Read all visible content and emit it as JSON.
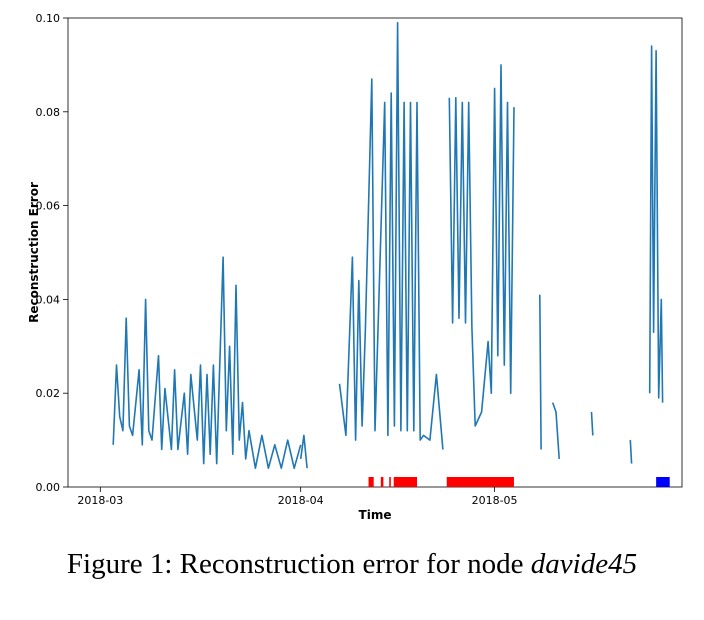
{
  "caption": {
    "prefix": "Figure 1: Reconstruction error for node ",
    "node": "davide45"
  },
  "chart_data": {
    "type": "line",
    "title": "",
    "xlabel": "Time",
    "ylabel": "Reconstruction Error",
    "ylim": [
      0.0,
      0.1
    ],
    "yticks": [
      "0.00",
      "0.02",
      "0.04",
      "0.06",
      "0.08",
      "0.10"
    ],
    "xlim": [
      "2018-02-24",
      "2018-05-30"
    ],
    "xticks": [
      {
        "date": "2018-03-01",
        "label": "2018-03"
      },
      {
        "date": "2018-04-01",
        "label": "2018-04"
      },
      {
        "date": "2018-05-01",
        "label": "2018-05"
      }
    ],
    "grid": false,
    "line_color": "#1f77b4",
    "series": [
      {
        "segments": [
          {
            "start": "2018-03-03",
            "end": "2018-04-01",
            "points": [
              [
                "2018-03-03",
                0.009
              ],
              [
                "2018-03-03.5",
                0.026
              ],
              [
                "2018-03-04",
                0.015
              ],
              [
                "2018-03-04.5",
                0.012
              ],
              [
                "2018-03-05",
                0.036
              ],
              [
                "2018-03-05.5",
                0.013
              ],
              [
                "2018-03-06",
                0.011
              ],
              [
                "2018-03-07",
                0.025
              ],
              [
                "2018-03-07.5",
                0.009
              ],
              [
                "2018-03-08",
                0.04
              ],
              [
                "2018-03-08.5",
                0.012
              ],
              [
                "2018-03-09",
                0.01
              ],
              [
                "2018-03-10",
                0.028
              ],
              [
                "2018-03-10.5",
                0.008
              ],
              [
                "2018-03-11",
                0.021
              ],
              [
                "2018-03-12",
                0.008
              ],
              [
                "2018-03-12.5",
                0.025
              ],
              [
                "2018-03-13",
                0.008
              ],
              [
                "2018-03-14",
                0.02
              ],
              [
                "2018-03-14.5",
                0.007
              ],
              [
                "2018-03-15",
                0.024
              ],
              [
                "2018-03-16",
                0.01
              ],
              [
                "2018-03-16.5",
                0.026
              ],
              [
                "2018-03-17",
                0.005
              ],
              [
                "2018-03-17.5",
                0.024
              ],
              [
                "2018-03-18",
                0.007
              ],
              [
                "2018-03-18.5",
                0.026
              ],
              [
                "2018-03-19",
                0.005
              ],
              [
                "2018-03-20",
                0.049
              ],
              [
                "2018-03-20.5",
                0.012
              ],
              [
                "2018-03-21",
                0.03
              ],
              [
                "2018-03-21.5",
                0.007
              ],
              [
                "2018-03-22",
                0.043
              ],
              [
                "2018-03-22.5",
                0.01
              ],
              [
                "2018-03-23",
                0.018
              ],
              [
                "2018-03-23.5",
                0.006
              ],
              [
                "2018-03-24",
                0.012
              ],
              [
                "2018-03-25",
                0.004
              ],
              [
                "2018-03-26",
                0.011
              ],
              [
                "2018-03-27",
                0.004
              ],
              [
                "2018-03-28",
                0.009
              ],
              [
                "2018-03-29",
                0.004
              ],
              [
                "2018-03-30",
                0.01
              ],
              [
                "2018-03-31",
                0.004
              ],
              [
                "2018-04-01",
                0.009
              ]
            ]
          },
          {
            "start": "2018-04-01",
            "end": "2018-04-02",
            "points": [
              [
                "2018-04-01",
                0.006
              ],
              [
                "2018-04-01.5",
                0.011
              ],
              [
                "2018-04-02",
                0.004
              ]
            ]
          },
          {
            "start": "2018-04-07",
            "end": "2018-04-23",
            "points": [
              [
                "2018-04-07",
                0.022
              ],
              [
                "2018-04-08",
                0.011
              ],
              [
                "2018-04-09",
                0.049
              ],
              [
                "2018-04-09.5",
                0.01
              ],
              [
                "2018-04-10",
                0.044
              ],
              [
                "2018-04-10.5",
                0.013
              ],
              [
                "2018-04-11",
                0.033
              ],
              [
                "2018-04-12",
                0.087
              ],
              [
                "2018-04-12.5",
                0.012
              ],
              [
                "2018-04-13",
                0.035
              ],
              [
                "2018-04-14",
                0.082
              ],
              [
                "2018-04-14.5",
                0.011
              ],
              [
                "2018-04-15",
                0.084
              ],
              [
                "2018-04-15.5",
                0.013
              ],
              [
                "2018-04-16",
                0.099
              ],
              [
                "2018-04-16.5",
                0.012
              ],
              [
                "2018-04-17",
                0.082
              ],
              [
                "2018-04-17.5",
                0.012
              ],
              [
                "2018-04-18",
                0.082
              ],
              [
                "2018-04-18.5",
                0.012
              ],
              [
                "2018-04-19",
                0.082
              ],
              [
                "2018-04-19.5",
                0.01
              ],
              [
                "2018-04-20",
                0.011
              ],
              [
                "2018-04-21",
                0.01
              ],
              [
                "2018-04-22",
                0.024
              ],
              [
                "2018-04-23",
                0.008
              ]
            ]
          },
          {
            "start": "2018-04-24",
            "end": "2018-05-04",
            "points": [
              [
                "2018-04-24",
                0.083
              ],
              [
                "2018-04-24.5",
                0.035
              ],
              [
                "2018-04-25",
                0.083
              ],
              [
                "2018-04-25.5",
                0.036
              ],
              [
                "2018-04-26",
                0.082
              ],
              [
                "2018-04-26.5",
                0.035
              ],
              [
                "2018-04-27",
                0.082
              ],
              [
                "2018-04-27.5",
                0.034
              ],
              [
                "2018-04-28",
                0.013
              ],
              [
                "2018-04-29",
                0.016
              ],
              [
                "2018-04-30",
                0.031
              ],
              [
                "2018-04-30.5",
                0.02
              ],
              [
                "2018-05-01",
                0.085
              ],
              [
                "2018-05-01.5",
                0.028
              ],
              [
                "2018-05-02",
                0.09
              ],
              [
                "2018-05-02.5",
                0.026
              ],
              [
                "2018-05-03",
                0.082
              ],
              [
                "2018-05-03.5",
                0.02
              ],
              [
                "2018-05-04",
                0.081
              ]
            ]
          },
          {
            "start": "2018-05-08",
            "end": "2018-05-08",
            "points": [
              [
                "2018-05-08",
                0.041
              ],
              [
                "2018-05-08.2",
                0.008
              ]
            ]
          },
          {
            "start": "2018-05-10",
            "end": "2018-05-11",
            "points": [
              [
                "2018-05-10",
                0.018
              ],
              [
                "2018-05-10.5",
                0.016
              ],
              [
                "2018-05-11",
                0.006
              ]
            ]
          },
          {
            "start": "2018-05-16",
            "end": "2018-05-16",
            "points": [
              [
                "2018-05-16",
                0.016
              ],
              [
                "2018-05-16.2",
                0.011
              ]
            ]
          },
          {
            "start": "2018-05-22",
            "end": "2018-05-22",
            "points": [
              [
                "2018-05-22",
                0.01
              ],
              [
                "2018-05-22.2",
                0.005
              ]
            ]
          },
          {
            "start": "2018-05-25",
            "end": "2018-05-27",
            "points": [
              [
                "2018-05-25",
                0.02
              ],
              [
                "2018-05-25.3",
                0.094
              ],
              [
                "2018-05-25.6",
                0.033
              ],
              [
                "2018-05-26",
                0.093
              ],
              [
                "2018-05-26.4",
                0.019
              ],
              [
                "2018-05-26.8",
                0.04
              ],
              [
                "2018-05-27",
                0.018
              ]
            ]
          }
        ]
      }
    ],
    "anomaly_bars": [
      {
        "start": "2018-04-11.5",
        "end": "2018-04-12.3",
        "color": "#ff0000"
      },
      {
        "start": "2018-04-13.4",
        "end": "2018-04-13.8",
        "color": "#ff0000"
      },
      {
        "start": "2018-04-14.7",
        "end": "2018-04-14.95",
        "color": "#ff0000"
      },
      {
        "start": "2018-04-15.4",
        "end": "2018-04-19.0",
        "color": "#ff0000"
      },
      {
        "start": "2018-04-23.6",
        "end": "2018-05-04.0",
        "color": "#ff0000"
      },
      {
        "start": "2018-05-26.0",
        "end": "2018-05-28.1",
        "color": "#0000ff"
      }
    ]
  }
}
